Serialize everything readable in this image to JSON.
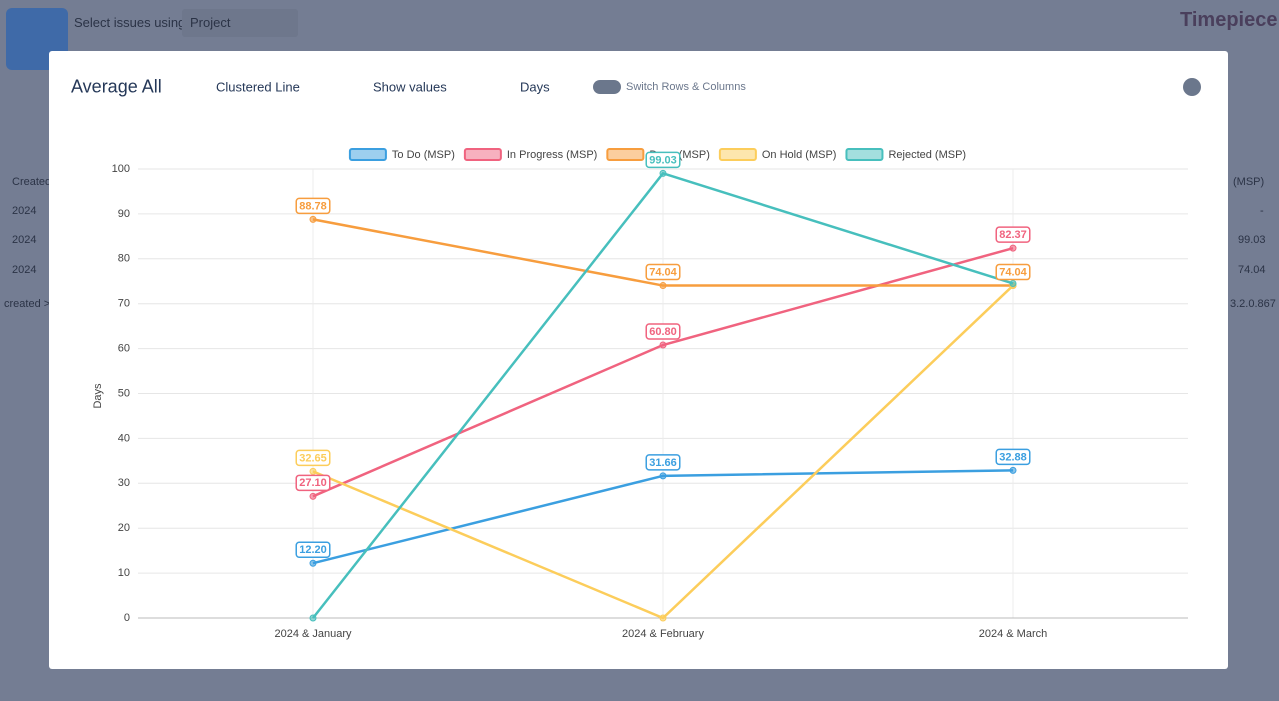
{
  "app": {
    "select_label": "Select issues using",
    "select_value": "Project",
    "brand": "Timepiece",
    "table": {
      "header": "Created",
      "header_right": "(MSP)",
      "rows": [
        [
          "2024",
          "-"
        ],
        [
          "2024",
          "99.03"
        ],
        [
          "2024",
          "74.04"
        ]
      ],
      "footer": "created >",
      "version": "3.2.0.867"
    }
  },
  "modal": {
    "title": "Average All",
    "chart_type": "Clustered Line",
    "show_values": "Show values",
    "unit": "Days",
    "switch": "Switch Rows & Columns"
  },
  "chart_data": {
    "type": "line",
    "y_label": "Days",
    "categories": [
      "2024 & January",
      "2024 & February",
      "2024 & March"
    ],
    "series": [
      {
        "name": "To Do (MSP)",
        "color": "#3b9fe0",
        "values": [
          12.2,
          31.66,
          32.88
        ],
        "value_labels": [
          "12.20",
          "31.66",
          "32.88"
        ]
      },
      {
        "name": "In Progress (MSP)",
        "color": "#f0637f",
        "values": [
          27.1,
          60.8,
          82.37
        ],
        "value_labels": [
          "27.10",
          "60.80",
          "82.37"
        ]
      },
      {
        "name": "Done (MSP)",
        "color": "#f79d3e",
        "values": [
          88.78,
          74.04,
          74.04
        ],
        "value_labels": [
          "88.78",
          "74.04",
          "74.04"
        ]
      },
      {
        "name": "On Hold (MSP)",
        "color": "#fccd5b",
        "values": [
          32.65,
          0,
          74.04
        ],
        "value_labels": [
          "32.65",
          null,
          null
        ]
      },
      {
        "name": "Rejected (MSP)",
        "color": "#47bfbd",
        "values": [
          0,
          99.03,
          74.5
        ],
        "value_labels": [
          null,
          "99.03",
          null
        ]
      }
    ],
    "ylim": [
      0,
      100
    ],
    "yticks": [
      0,
      10,
      20,
      30,
      40,
      50,
      60,
      70,
      80,
      90,
      100
    ],
    "grid": true,
    "legend": "top"
  }
}
